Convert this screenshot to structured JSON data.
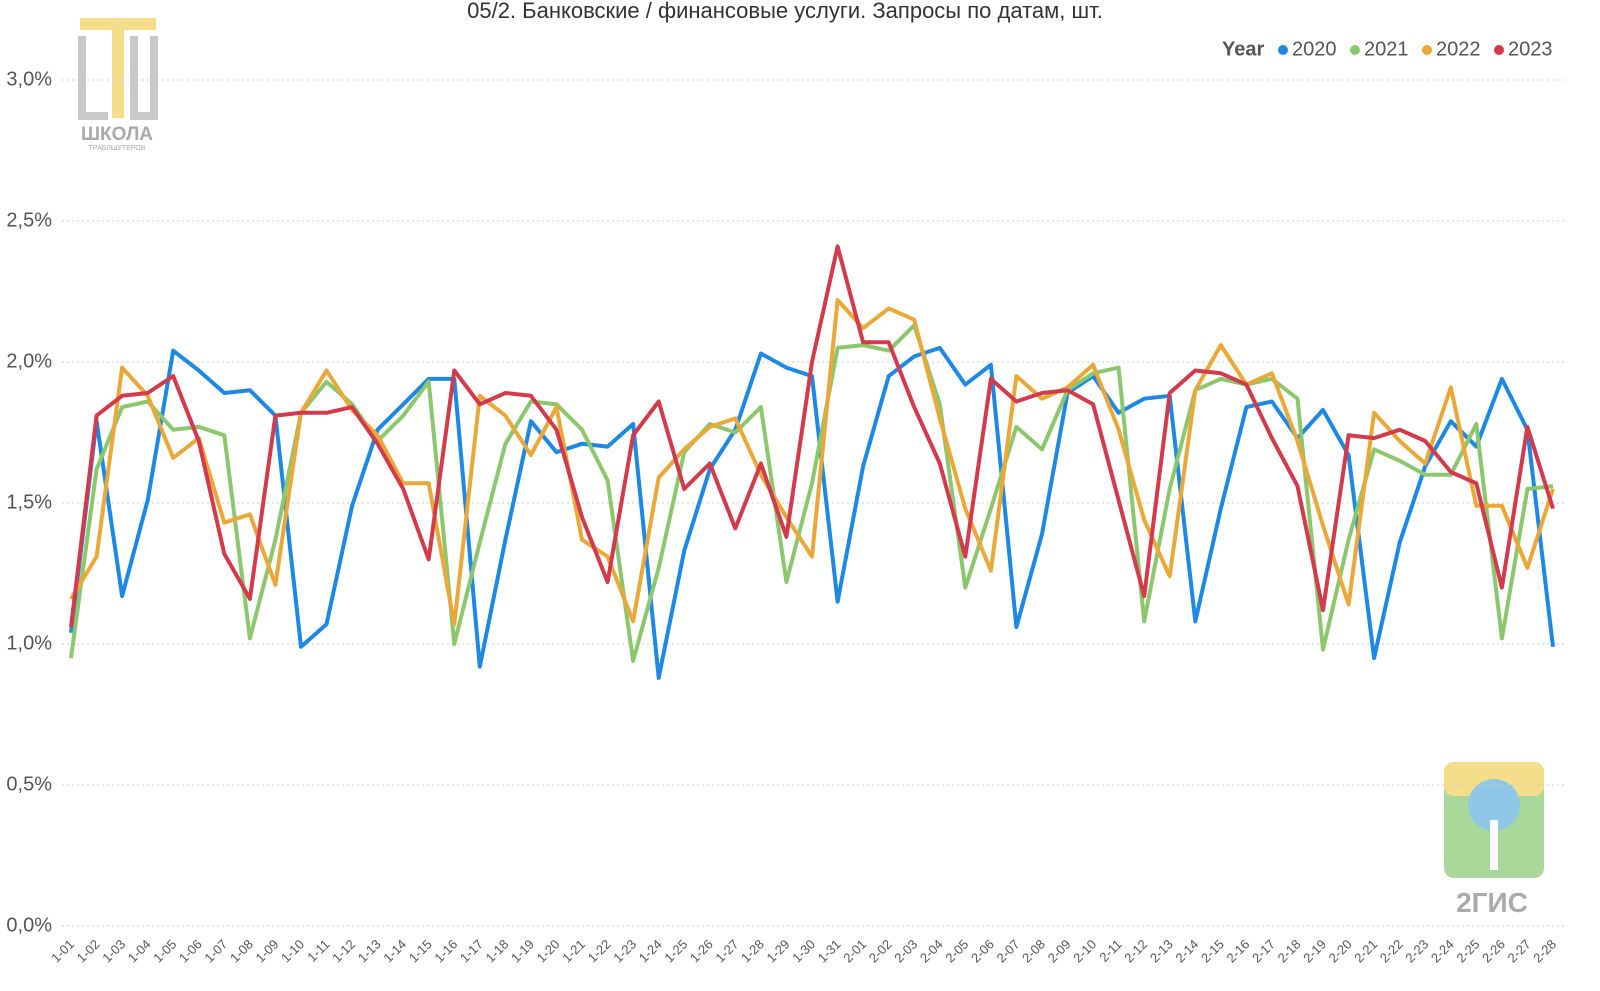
{
  "chart_data": {
    "type": "line",
    "title": "05/2. Банковские / финансовые услуги. Запросы по датам, шт.",
    "legend_title": "Year",
    "logos": {
      "school": "ШКОЛА",
      "school_sub": "ТРАБЛШУТЕРОВ",
      "gis": "2ГИС"
    },
    "categories": [
      "1-01",
      "1-02",
      "1-03",
      "1-04",
      "1-05",
      "1-06",
      "1-07",
      "1-08",
      "1-09",
      "1-10",
      "1-11",
      "1-12",
      "1-13",
      "1-14",
      "1-15",
      "1-16",
      "1-17",
      "1-18",
      "1-19",
      "1-20",
      "1-21",
      "1-22",
      "1-23",
      "1-24",
      "1-25",
      "1-26",
      "1-27",
      "1-28",
      "1-29",
      "1-30",
      "1-31",
      "2-01",
      "2-02",
      "2-03",
      "2-04",
      "2-05",
      "2-06",
      "2-07",
      "2-08",
      "2-09",
      "2-10",
      "2-11",
      "2-12",
      "2-13",
      "2-14",
      "2-15",
      "2-16",
      "2-17",
      "2-18",
      "2-19",
      "2-20",
      "2-21",
      "2-22",
      "2-23",
      "2-24",
      "2-25",
      "2-26",
      "2-27",
      "2-28"
    ],
    "series": [
      {
        "name": "2020",
        "color": "#1e88e5",
        "values": [
          1.04,
          1.79,
          1.17,
          1.51,
          2.04,
          1.97,
          1.89,
          1.9,
          1.81,
          0.99,
          1.07,
          1.49,
          1.76,
          1.85,
          1.94,
          1.94,
          0.92,
          1.37,
          1.79,
          1.68,
          1.71,
          1.7,
          1.78,
          0.88,
          1.33,
          1.62,
          1.76,
          2.03,
          1.98,
          1.95,
          1.15,
          1.63,
          1.95,
          2.02,
          2.05,
          1.92,
          1.99,
          1.06,
          1.39,
          1.89,
          1.95,
          1.82,
          1.87,
          1.88,
          1.08,
          1.48,
          1.84,
          1.86,
          1.73,
          1.83,
          1.67,
          0.95,
          1.36,
          1.63,
          1.79,
          1.7,
          1.94,
          1.76,
          0.99
        ]
      },
      {
        "name": "2021",
        "color": "#8cc76e",
        "values": [
          0.95,
          1.62,
          1.84,
          1.86,
          1.76,
          1.77,
          1.74,
          1.02,
          1.37,
          1.82,
          1.93,
          1.85,
          1.72,
          1.81,
          1.93,
          1.0,
          1.36,
          1.71,
          1.86,
          1.85,
          1.76,
          1.58,
          0.94,
          1.27,
          1.68,
          1.78,
          1.75,
          1.84,
          1.22,
          1.57,
          2.05,
          2.06,
          2.04,
          2.13,
          1.85,
          1.2,
          1.48,
          1.77,
          1.69,
          1.9,
          1.96,
          1.98,
          1.08,
          1.55,
          1.9,
          1.94,
          1.92,
          1.94,
          1.87,
          0.98,
          1.37,
          1.69,
          1.65,
          1.6,
          1.6,
          1.78,
          1.02,
          1.55,
          1.56
        ]
      },
      {
        "name": "2022",
        "color": "#e9a838",
        "values": [
          1.16,
          1.31,
          1.98,
          1.88,
          1.66,
          1.73,
          1.43,
          1.46,
          1.21,
          1.82,
          1.97,
          1.83,
          1.74,
          1.57,
          1.57,
          1.07,
          1.88,
          1.81,
          1.67,
          1.84,
          1.37,
          1.31,
          1.08,
          1.59,
          1.69,
          1.77,
          1.8,
          1.6,
          1.45,
          1.31,
          2.22,
          2.12,
          2.19,
          2.15,
          1.8,
          1.48,
          1.26,
          1.95,
          1.87,
          1.91,
          1.99,
          1.76,
          1.44,
          1.24,
          1.9,
          2.06,
          1.92,
          1.96,
          1.72,
          1.42,
          1.14,
          1.82,
          1.72,
          1.64,
          1.91,
          1.49,
          1.49,
          1.27,
          1.55
        ]
      },
      {
        "name": "2023",
        "color": "#d33a4b",
        "values": [
          1.06,
          1.81,
          1.88,
          1.89,
          1.95,
          1.72,
          1.32,
          1.16,
          1.81,
          1.82,
          1.82,
          1.84,
          1.71,
          1.55,
          1.3,
          1.97,
          1.85,
          1.89,
          1.88,
          1.76,
          1.45,
          1.22,
          1.74,
          1.86,
          1.55,
          1.64,
          1.41,
          1.64,
          1.38,
          2.0,
          2.41,
          2.07,
          2.07,
          1.84,
          1.64,
          1.31,
          1.94,
          1.86,
          1.89,
          1.9,
          1.85,
          1.51,
          1.17,
          1.89,
          1.97,
          1.96,
          1.92,
          1.73,
          1.56,
          1.12,
          1.74,
          1.73,
          1.76,
          1.72,
          1.61,
          1.57,
          1.2,
          1.77,
          1.48
        ]
      }
    ],
    "ylim": [
      0,
      3
    ],
    "yticks": [
      {
        "value": 0,
        "label": "0,0%"
      },
      {
        "value": 0.5,
        "label": "0,5%"
      },
      {
        "value": 1,
        "label": "1,0%"
      },
      {
        "value": 1.5,
        "label": "1,5%"
      },
      {
        "value": 2,
        "label": "2,0%"
      },
      {
        "value": 2.5,
        "label": "2,5%"
      },
      {
        "value": 3,
        "label": "3,0%"
      }
    ],
    "grid": true
  }
}
